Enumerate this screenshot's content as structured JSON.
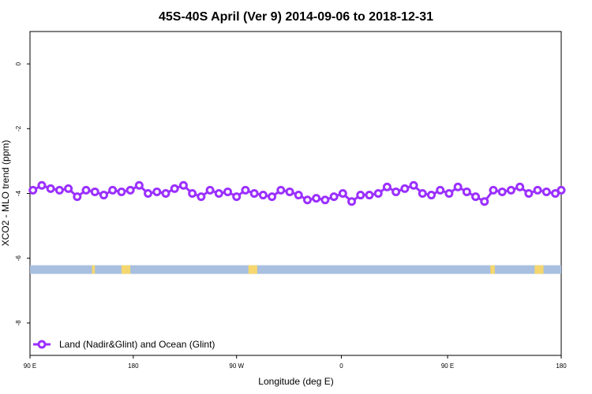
{
  "chart_data": {
    "type": "line",
    "title": "45S-40S April (Ver 9)   2014-09-06 to 2018-12-31",
    "xlabel": "Longitude (deg E)",
    "ylabel": "XCO2 - MLO trend (ppm)",
    "xlim": [
      90,
      450
    ],
    "ylim": [
      -9,
      1
    ],
    "x_ticks": [
      {
        "value": 90,
        "label": "90 E"
      },
      {
        "value": 160,
        "label": "180"
      },
      {
        "value": 230,
        "label": "90 W"
      },
      {
        "value": 301,
        "label": "0"
      },
      {
        "value": 373,
        "label": "90 E"
      },
      {
        "value": 450,
        "label": "180"
      }
    ],
    "y_ticks": [
      {
        "value": 0,
        "label": "0"
      },
      {
        "value": -2,
        "label": "-2"
      },
      {
        "value": -4,
        "label": "-4"
      },
      {
        "value": -6,
        "label": "-6"
      },
      {
        "value": -8,
        "label": "-8"
      }
    ],
    "grid": false,
    "legend_position": "bottom-left",
    "series": [
      {
        "name": "Land (Nadir&Glint) and Ocean (Glint)",
        "color": "#9b30ff",
        "marker": "open-circle",
        "x": [
          92,
          98,
          104,
          110,
          116,
          122,
          128,
          134,
          140,
          146,
          152,
          158,
          164,
          170,
          176,
          182,
          188,
          194,
          200,
          206,
          212,
          218,
          224,
          230,
          236,
          242,
          248,
          254,
          260,
          266,
          272,
          278,
          284,
          290,
          296,
          302,
          308,
          314,
          320,
          326,
          332,
          338,
          344,
          350,
          356,
          362,
          368,
          374,
          380,
          386,
          392,
          398,
          404,
          410,
          416,
          422,
          428,
          434,
          440,
          446,
          450
        ],
        "y": [
          -3.9,
          -3.75,
          -3.85,
          -3.9,
          -3.85,
          -4.1,
          -3.9,
          -3.95,
          -4.05,
          -3.9,
          -3.95,
          -3.9,
          -3.75,
          -4.0,
          -3.95,
          -4.0,
          -3.85,
          -3.75,
          -4.0,
          -4.1,
          -3.9,
          -4.0,
          -3.95,
          -4.1,
          -3.9,
          -4.0,
          -4.05,
          -4.1,
          -3.9,
          -3.95,
          -4.05,
          -4.2,
          -4.15,
          -4.2,
          -4.1,
          -4.0,
          -4.25,
          -4.05,
          -4.05,
          -4.0,
          -3.8,
          -3.95,
          -3.85,
          -3.75,
          -4.0,
          -4.05,
          -3.9,
          -4.0,
          -3.8,
          -3.95,
          -4.1,
          -4.25,
          -3.9,
          -3.95,
          -3.9,
          -3.8,
          -4.0,
          -3.9,
          -3.95,
          -4.0,
          -3.9
        ]
      }
    ],
    "surface_band": {
      "y": -6.35,
      "base_color": "#a8bfe0",
      "land_color": "#f5d76e",
      "land_segments": [
        [
          132,
          134
        ],
        [
          152,
          156
        ],
        [
          156,
          158
        ],
        [
          238,
          244
        ],
        [
          402,
          405
        ],
        [
          432,
          436
        ],
        [
          436,
          438
        ]
      ]
    }
  }
}
